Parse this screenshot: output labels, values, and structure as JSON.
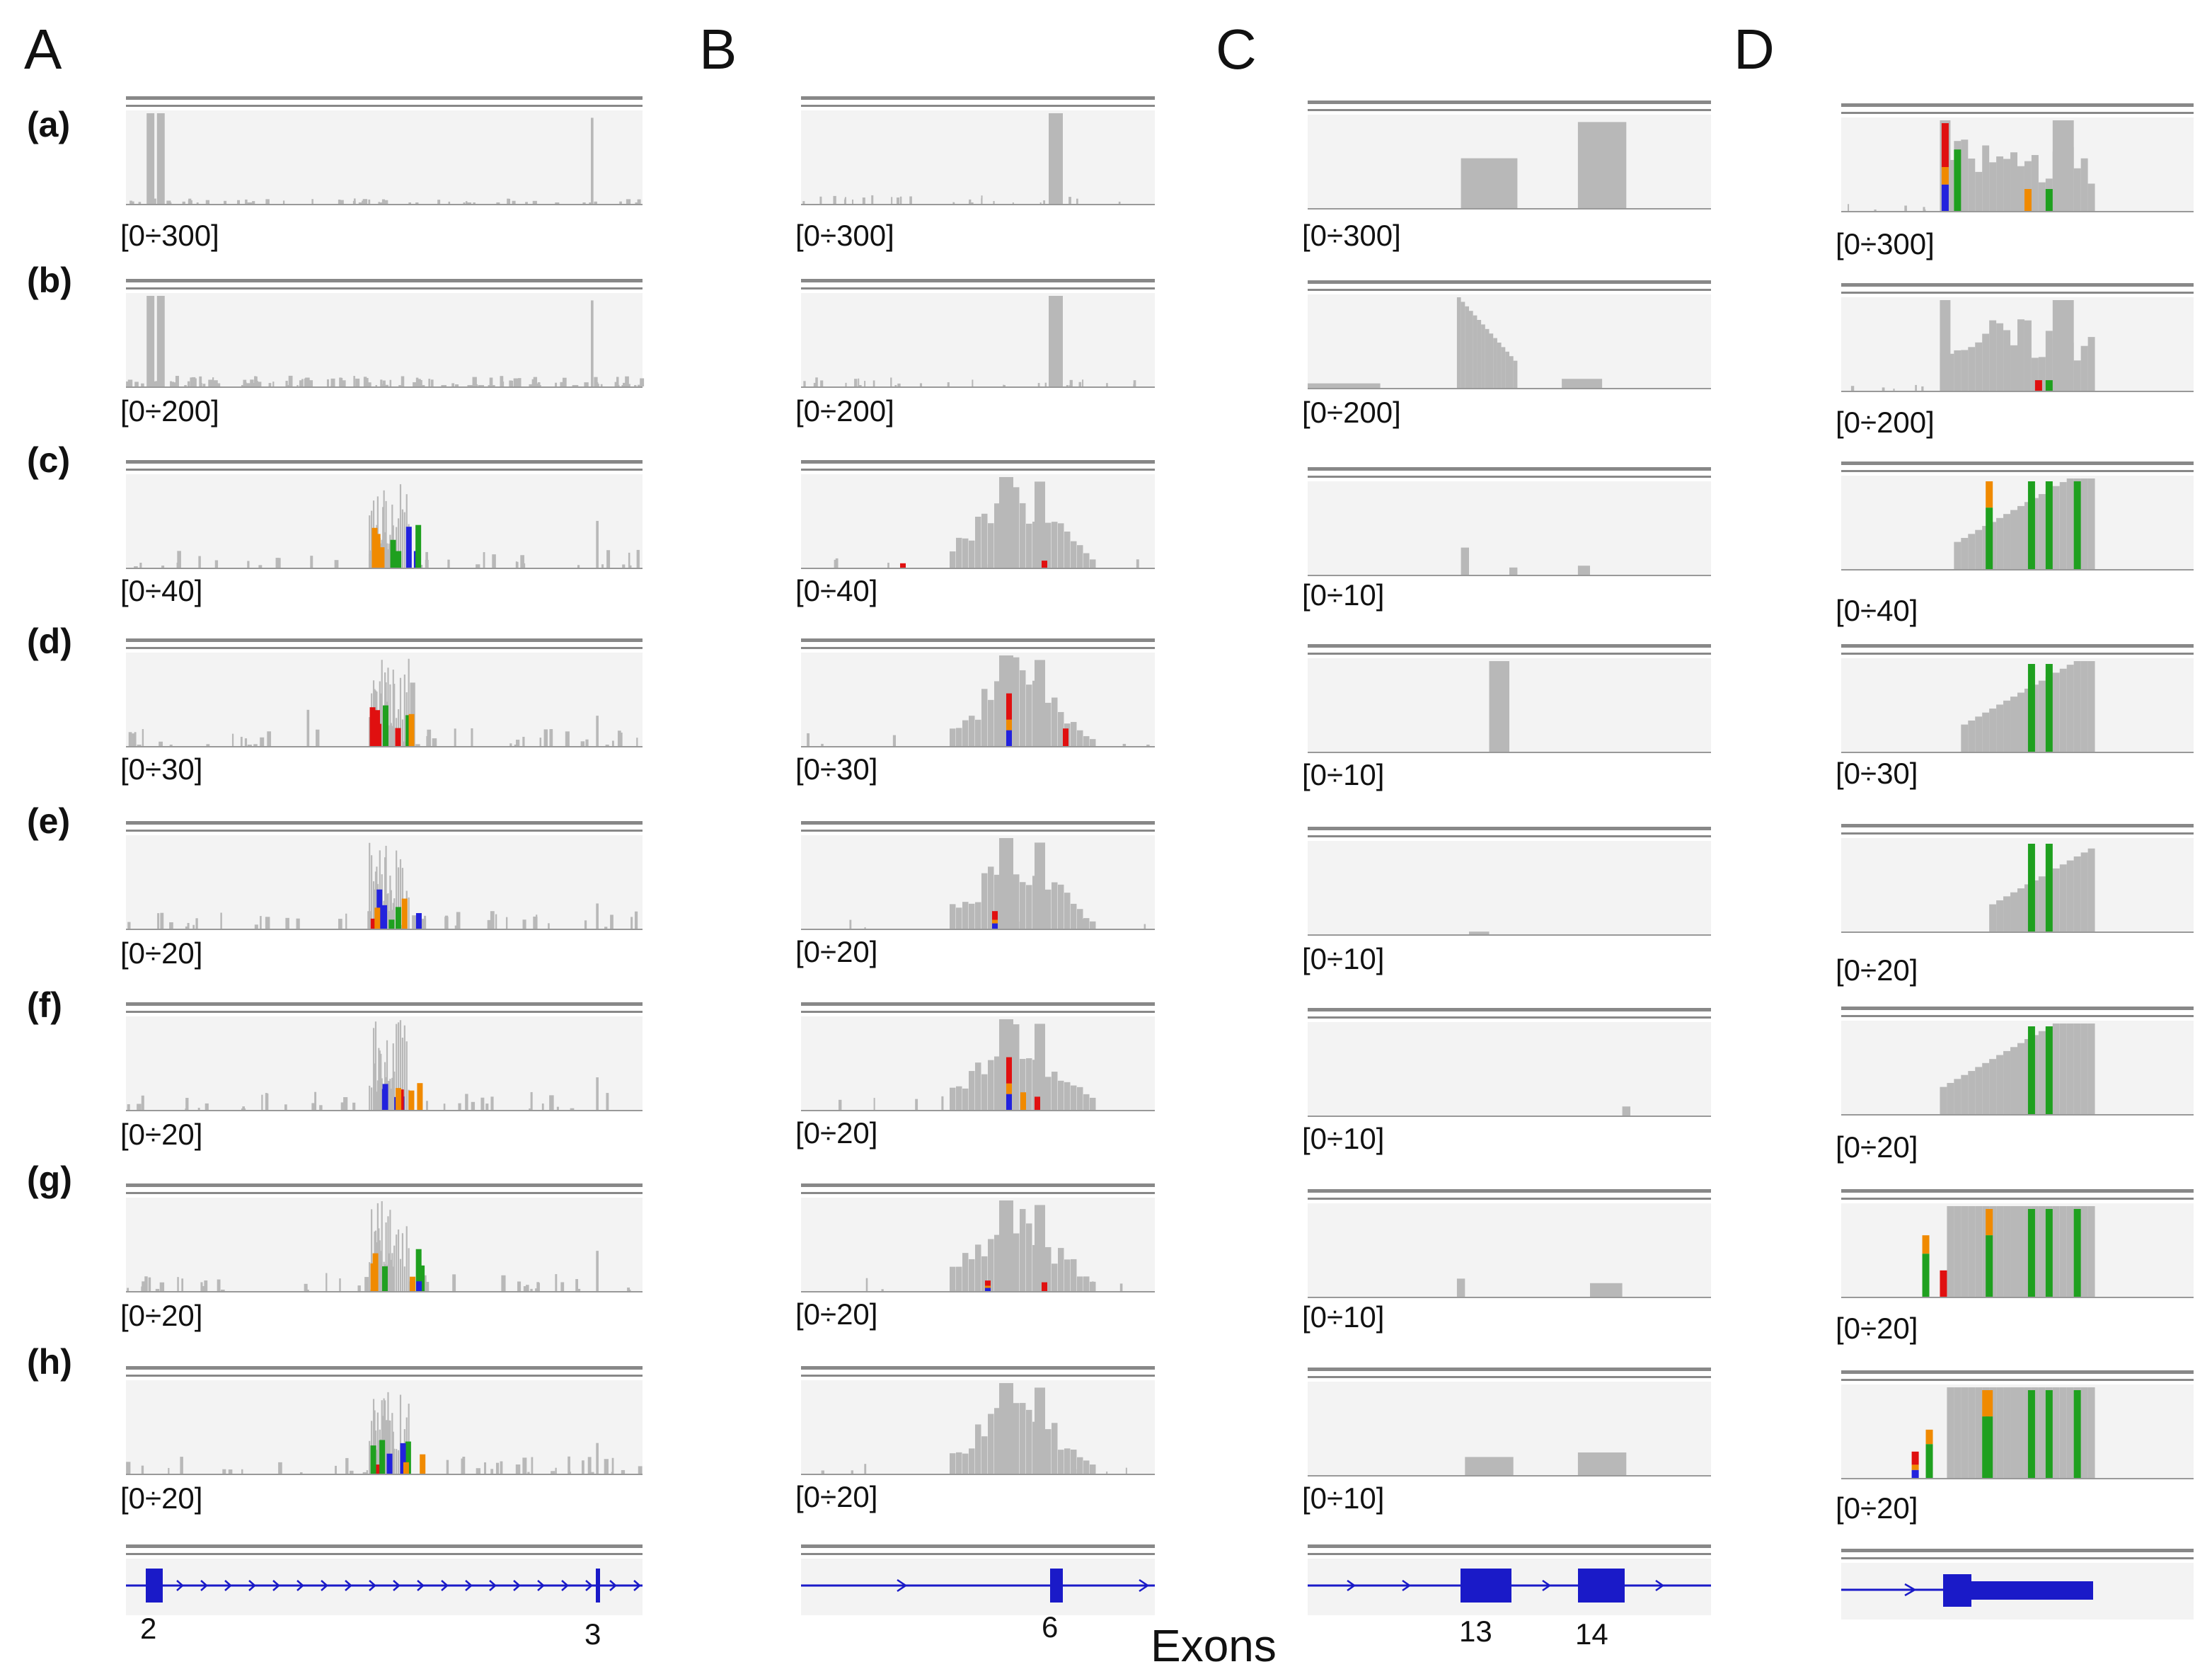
{
  "columns": [
    {
      "id": "A",
      "label": "A"
    },
    {
      "id": "B",
      "label": "B"
    },
    {
      "id": "C",
      "label": "C"
    },
    {
      "id": "D",
      "label": "D"
    }
  ],
  "rows": [
    {
      "id": "a",
      "label": "(a)",
      "ranges": [
        "[0÷300]",
        "[0÷300]",
        "[0÷300]",
        "[0÷300]"
      ]
    },
    {
      "id": "b",
      "label": "(b)",
      "ranges": [
        "[0÷200]",
        "[0÷200]",
        "[0÷200]",
        "[0÷200]"
      ]
    },
    {
      "id": "c",
      "label": "(c)",
      "ranges": [
        "[0÷40]",
        "[0÷40]",
        "[0÷10]",
        "[0÷40]"
      ]
    },
    {
      "id": "d",
      "label": "(d)",
      "ranges": [
        "[0÷30]",
        "[0÷30]",
        "[0÷10]",
        "[0÷30]"
      ]
    },
    {
      "id": "e",
      "label": "(e)",
      "ranges": [
        "[0÷20]",
        "[0÷20]",
        "[0÷10]",
        "[0÷20]"
      ]
    },
    {
      "id": "f",
      "label": "(f)",
      "ranges": [
        "[0÷20]",
        "[0÷20]",
        "[0÷10]",
        "[0÷20]"
      ]
    },
    {
      "id": "g",
      "label": "(g)",
      "ranges": [
        "[0÷20]",
        "[0÷20]",
        "[0÷10]",
        "[0÷20]"
      ]
    },
    {
      "id": "h",
      "label": "(h)",
      "ranges": [
        "[0÷20]",
        "[0÷20]",
        "[0÷10]",
        "[0÷20]"
      ]
    }
  ],
  "exons": {
    "A": [
      "2",
      "3"
    ],
    "B": [
      "6"
    ],
    "C": [
      "13",
      "14"
    ],
    "D": []
  },
  "exons_title": "Exons",
  "colors": {
    "coverage": "#b8b8b8",
    "track_bg": "#f3f3f3",
    "separator": "#888888",
    "gene": "#1a1ac8",
    "base_A": "#1fa01f",
    "base_C": "#2222dd",
    "base_G": "#f08a00",
    "base_T": "#e01010"
  }
}
